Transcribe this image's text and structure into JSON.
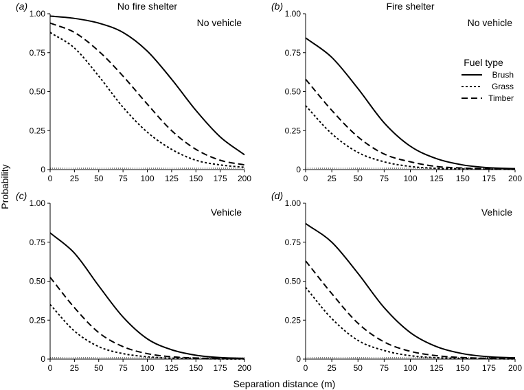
{
  "figure": {
    "xlabel": "Separation distance (m)",
    "ylabel": "Probability"
  },
  "legend": {
    "title": "Fuel type",
    "entries": [
      {
        "name": "Brush",
        "style": "solid"
      },
      {
        "name": "Grass",
        "style": "dotted"
      },
      {
        "name": "Timber",
        "style": "dashed"
      }
    ]
  },
  "chart_data": [
    {
      "type": "line",
      "letter": "(a)",
      "title": "No fire shelter",
      "annotation": "No vehicle",
      "x": [
        0,
        25,
        50,
        75,
        100,
        125,
        150,
        175,
        200
      ],
      "x_ticks": [
        "0",
        "25",
        "50",
        "75",
        "100",
        "125",
        "150",
        "175",
        "200"
      ],
      "y_ticks": [
        "0",
        "0.25",
        "0.50",
        "0.75",
        "1.00"
      ],
      "xlim": [
        0,
        200
      ],
      "ylim": [
        0,
        1
      ],
      "series": [
        {
          "name": "Brush",
          "style": "solid",
          "values": [
            0.985,
            0.97,
            0.94,
            0.88,
            0.76,
            0.58,
            0.38,
            0.21,
            0.095
          ]
        },
        {
          "name": "Timber",
          "style": "dashed",
          "values": [
            0.94,
            0.88,
            0.76,
            0.6,
            0.42,
            0.25,
            0.13,
            0.06,
            0.03
          ]
        },
        {
          "name": "Grass",
          "style": "dotted",
          "values": [
            0.88,
            0.78,
            0.6,
            0.4,
            0.24,
            0.13,
            0.06,
            0.03,
            0.015
          ]
        }
      ]
    },
    {
      "type": "line",
      "letter": "(b)",
      "title": "Fire shelter",
      "annotation": "No vehicle",
      "x": [
        0,
        25,
        50,
        75,
        100,
        125,
        150,
        175,
        200
      ],
      "x_ticks": [
        "0",
        "25",
        "50",
        "75",
        "100",
        "125",
        "150",
        "175",
        "200"
      ],
      "y_ticks": [
        "0",
        "0.25",
        "0.50",
        "0.75",
        "1.00"
      ],
      "xlim": [
        0,
        200
      ],
      "ylim": [
        0,
        1
      ],
      "series": [
        {
          "name": "Brush",
          "style": "solid",
          "values": [
            0.845,
            0.72,
            0.52,
            0.3,
            0.15,
            0.07,
            0.03,
            0.012,
            0.006
          ]
        },
        {
          "name": "Timber",
          "style": "dashed",
          "values": [
            0.58,
            0.38,
            0.21,
            0.1,
            0.05,
            0.02,
            0.01,
            0.005,
            0.003
          ]
        },
        {
          "name": "Grass",
          "style": "dotted",
          "values": [
            0.41,
            0.23,
            0.11,
            0.05,
            0.02,
            0.008,
            0.004,
            0.002,
            0.001
          ]
        }
      ]
    },
    {
      "type": "line",
      "letter": "(c)",
      "title": "",
      "annotation": "Vehicle",
      "x": [
        0,
        25,
        50,
        75,
        100,
        125,
        150,
        175,
        200
      ],
      "x_ticks": [
        "0",
        "25",
        "50",
        "75",
        "100",
        "125",
        "150",
        "175",
        "200"
      ],
      "y_ticks": [
        "0",
        "0.25",
        "0.50",
        "0.75",
        "1.00"
      ],
      "xlim": [
        0,
        200
      ],
      "ylim": [
        0,
        1
      ],
      "series": [
        {
          "name": "Brush",
          "style": "solid",
          "values": [
            0.81,
            0.68,
            0.47,
            0.27,
            0.13,
            0.06,
            0.025,
            0.01,
            0.005
          ]
        },
        {
          "name": "Timber",
          "style": "dashed",
          "values": [
            0.525,
            0.33,
            0.17,
            0.08,
            0.035,
            0.015,
            0.007,
            0.003,
            0.002
          ]
        },
        {
          "name": "Grass",
          "style": "dotted",
          "values": [
            0.35,
            0.18,
            0.08,
            0.035,
            0.015,
            0.006,
            0.003,
            0.001,
            0.0005
          ]
        }
      ]
    },
    {
      "type": "line",
      "letter": "(d)",
      "title": "",
      "annotation": "Vehicle",
      "x": [
        0,
        25,
        50,
        75,
        100,
        125,
        150,
        175,
        200
      ],
      "x_ticks": [
        "0",
        "25",
        "50",
        "75",
        "100",
        "125",
        "150",
        "175",
        "200"
      ],
      "y_ticks": [
        "0",
        "0.25",
        "0.50",
        "0.75",
        "1.00"
      ],
      "xlim": [
        0,
        200
      ],
      "ylim": [
        0,
        1
      ],
      "series": [
        {
          "name": "Brush",
          "style": "solid",
          "values": [
            0.87,
            0.75,
            0.55,
            0.33,
            0.17,
            0.08,
            0.035,
            0.015,
            0.008
          ]
        },
        {
          "name": "Timber",
          "style": "dashed",
          "values": [
            0.63,
            0.42,
            0.23,
            0.11,
            0.05,
            0.022,
            0.01,
            0.005,
            0.002
          ]
        },
        {
          "name": "Grass",
          "style": "dotted",
          "values": [
            0.46,
            0.26,
            0.12,
            0.055,
            0.022,
            0.009,
            0.004,
            0.002,
            0.001
          ]
        }
      ]
    }
  ]
}
